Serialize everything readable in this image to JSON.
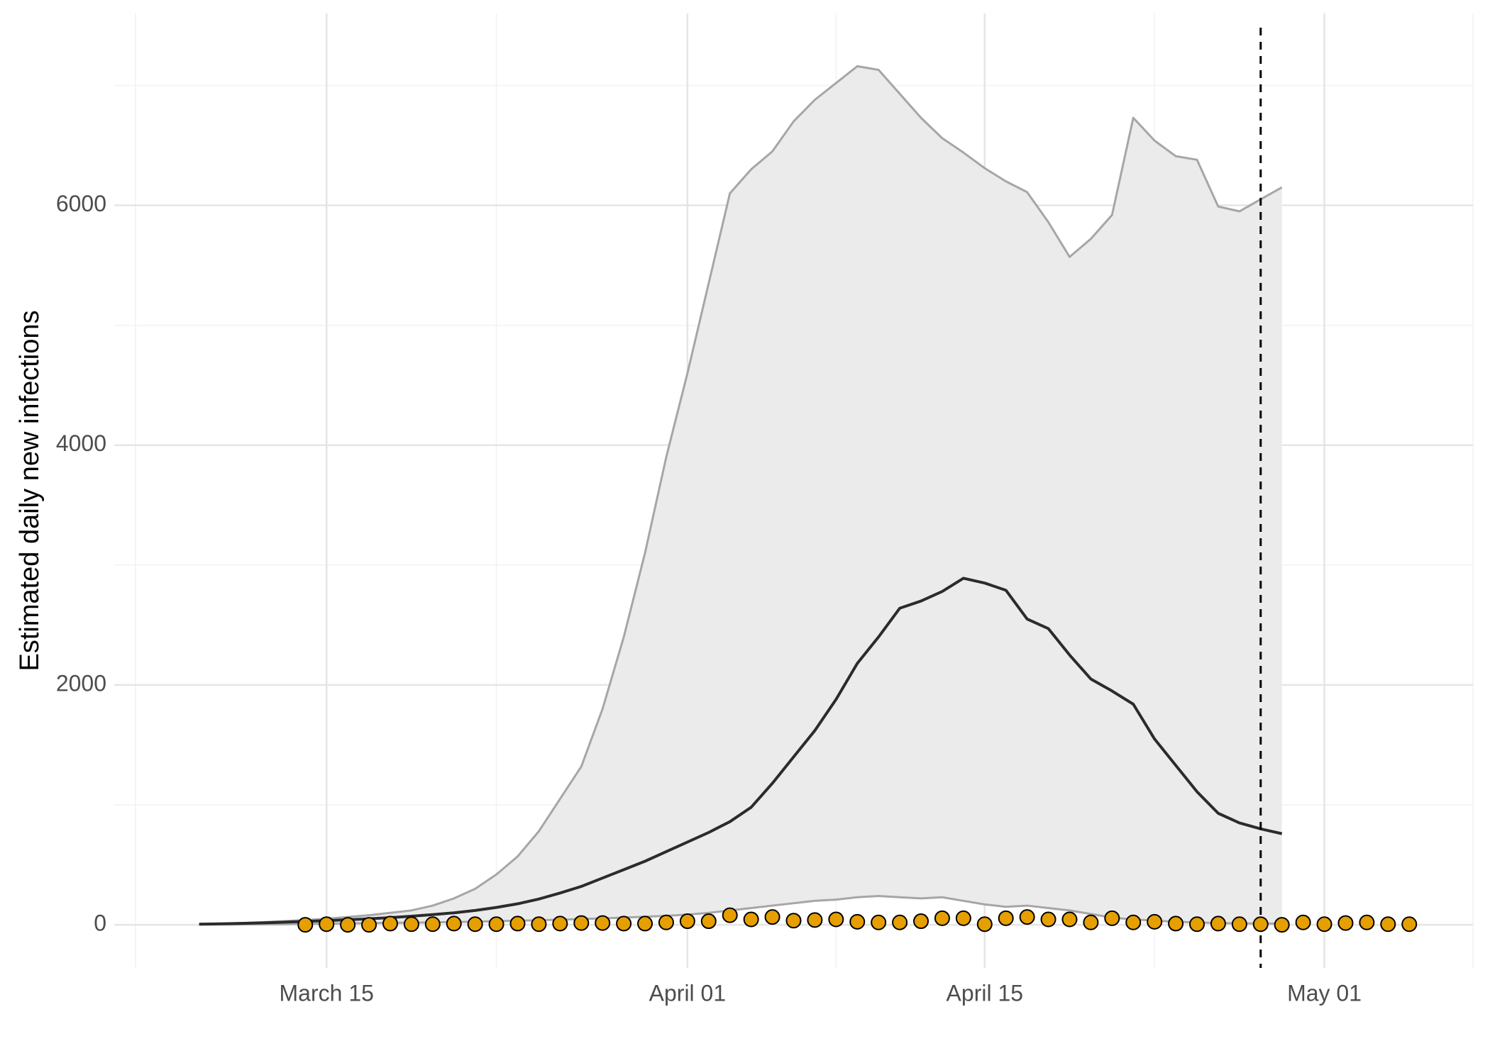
{
  "chart_data": {
    "type": "line",
    "y_label": "Estimated daily new infections",
    "x": [
      "03-09",
      "03-10",
      "03-11",
      "03-12",
      "03-13",
      "03-14",
      "03-15",
      "03-16",
      "03-17",
      "03-18",
      "03-19",
      "03-20",
      "03-21",
      "03-22",
      "03-23",
      "03-24",
      "03-25",
      "03-26",
      "03-27",
      "03-28",
      "03-29",
      "03-30",
      "03-31",
      "04-01",
      "04-02",
      "04-03",
      "04-04",
      "04-05",
      "04-06",
      "04-07",
      "04-08",
      "04-09",
      "04-10",
      "04-11",
      "04-12",
      "04-13",
      "04-14",
      "04-15",
      "04-16",
      "04-17",
      "04-18",
      "04-19",
      "04-20",
      "04-21",
      "04-22",
      "04-23",
      "04-24",
      "04-25",
      "04-26",
      "04-27",
      "04-28",
      "04-29"
    ],
    "series": [
      {
        "color": "#2b2b2b",
        "values": [
          5,
          8,
          12,
          16,
          22,
          28,
          35,
          42,
          50,
          60,
          72,
          85,
          100,
          120,
          145,
          175,
          215,
          265,
          320,
          390,
          460,
          530,
          610,
          690,
          770,
          860,
          980,
          1180,
          1400,
          1620,
          1880,
          2180,
          2400,
          2640,
          2700,
          2780,
          2890,
          2850,
          2790,
          2550,
          2470,
          2250,
          2050,
          1950,
          1840,
          1550,
          1330,
          1110,
          930,
          850,
          800,
          760
        ]
      },
      {
        "color": "#a6a6a6",
        "values": [
          8,
          10,
          15,
          22,
          30,
          40,
          50,
          65,
          80,
          100,
          120,
          160,
          220,
          300,
          420,
          570,
          780,
          1050,
          1320,
          1800,
          2400,
          3100,
          3900,
          4600,
          5350,
          6100,
          6300,
          6450,
          6700,
          6880,
          7020,
          7160,
          7130,
          6930,
          6730,
          6560,
          6440,
          6310,
          6200,
          6110,
          5860,
          5570,
          5720,
          5920,
          6730,
          6540,
          6410,
          6380,
          5990,
          5950,
          6050,
          6150
        ]
      },
      {
        "color": "#a6a6a6",
        "values": [
          2,
          3,
          4,
          5,
          6,
          8,
          10,
          12,
          14,
          16,
          18,
          20,
          23,
          26,
          30,
          34,
          38,
          43,
          48,
          54,
          60,
          67,
          75,
          85,
          100,
          120,
          140,
          160,
          180,
          200,
          210,
          230,
          240,
          230,
          220,
          230,
          200,
          170,
          150,
          160,
          140,
          120,
          90,
          60,
          45,
          35,
          25,
          20,
          15,
          12,
          10,
          10
        ]
      }
    ],
    "band_color": "#ebebeb",
    "points": {
      "color": "#e69f00",
      "x": [
        "03-14",
        "03-15",
        "03-16",
        "03-17",
        "03-18",
        "03-19",
        "03-20",
        "03-21",
        "03-22",
        "03-23",
        "03-24",
        "03-25",
        "03-26",
        "03-27",
        "03-28",
        "03-29",
        "03-30",
        "03-31",
        "04-01",
        "04-02",
        "04-03",
        "04-04",
        "04-05",
        "04-06",
        "04-07",
        "04-08",
        "04-09",
        "04-10",
        "04-11",
        "04-12",
        "04-13",
        "04-14",
        "04-15",
        "04-16",
        "04-17",
        "04-18",
        "04-19",
        "04-20",
        "04-21",
        "04-22",
        "04-23",
        "04-24",
        "04-25",
        "04-26",
        "04-27",
        "04-28",
        "04-29",
        "04-30",
        "05-01",
        "05-02",
        "05-03",
        "05-04",
        "05-05"
      ],
      "values": [
        0,
        5,
        0,
        0,
        10,
        5,
        5,
        10,
        5,
        5,
        10,
        5,
        10,
        15,
        15,
        10,
        10,
        20,
        30,
        30,
        80,
        45,
        65,
        35,
        40,
        45,
        25,
        20,
        20,
        30,
        55,
        55,
        5,
        55,
        65,
        45,
        45,
        20,
        55,
        20,
        25,
        10,
        5,
        10,
        5,
        5,
        0,
        20,
        5,
        15,
        20,
        5,
        5
      ]
    },
    "vline": "04-28",
    "xlim": [
      "03-05",
      "05-08"
    ],
    "xticks": [
      {
        "value": "03-15",
        "label": "March 15"
      },
      {
        "value": "04-01",
        "label": "April 01"
      },
      {
        "value": "04-15",
        "label": "April 15"
      },
      {
        "value": "05-01",
        "label": "May 01"
      }
    ],
    "xminor": [
      "03-06",
      "03-23",
      "04-08",
      "04-23",
      "05-08"
    ],
    "ylim": [
      -360,
      7600
    ],
    "yticks": [
      0,
      2000,
      4000,
      6000
    ],
    "yminor": [
      1000,
      3000,
      5000,
      7000
    ],
    "grid": true
  }
}
